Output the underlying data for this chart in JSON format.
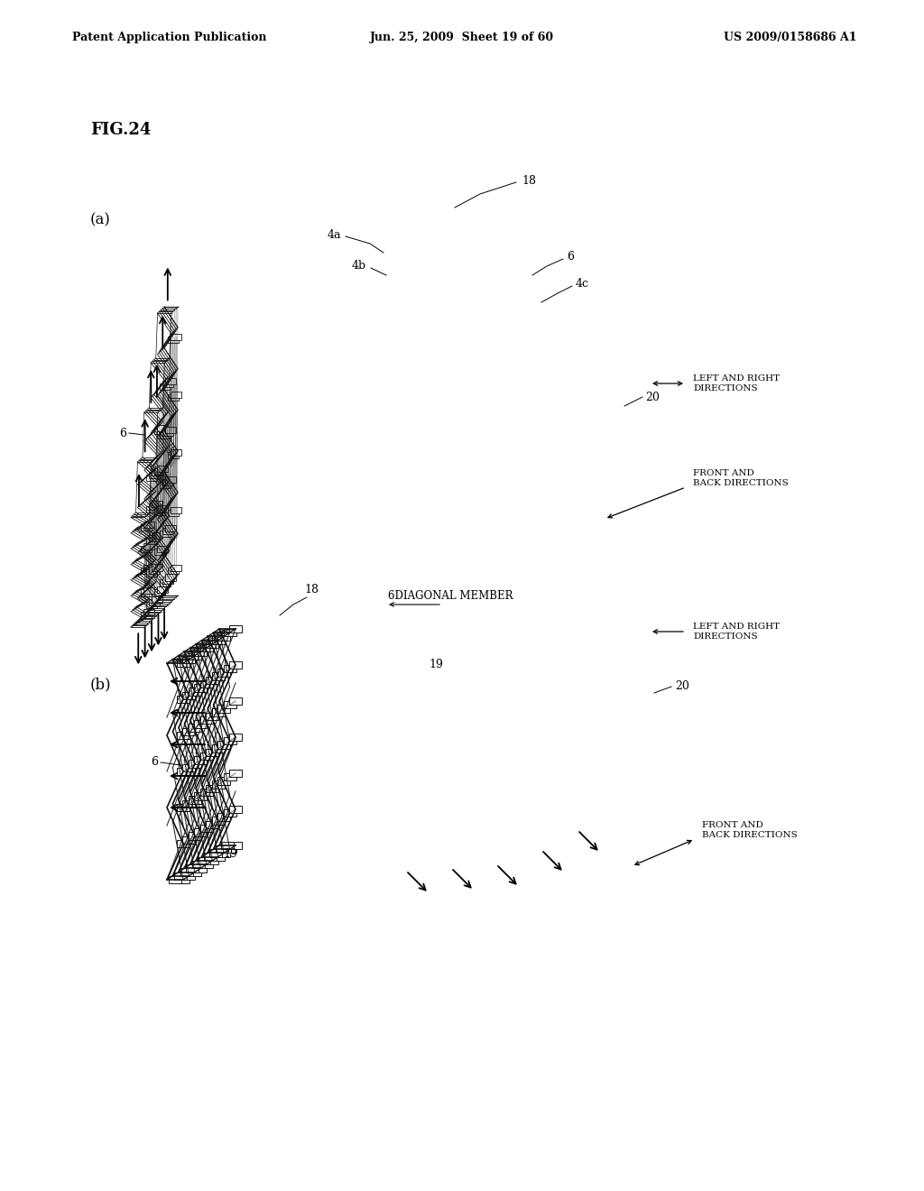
{
  "background_color": "#ffffff",
  "header_left": "Patent Application Publication",
  "header_mid": "Jun. 25, 2009  Sheet 19 of 60",
  "header_right": "US 2009/0158686 A1",
  "fig_label": "FIG.24",
  "sub_a_label": "(a)",
  "sub_b_label": "(b)",
  "line_color": "#111111"
}
